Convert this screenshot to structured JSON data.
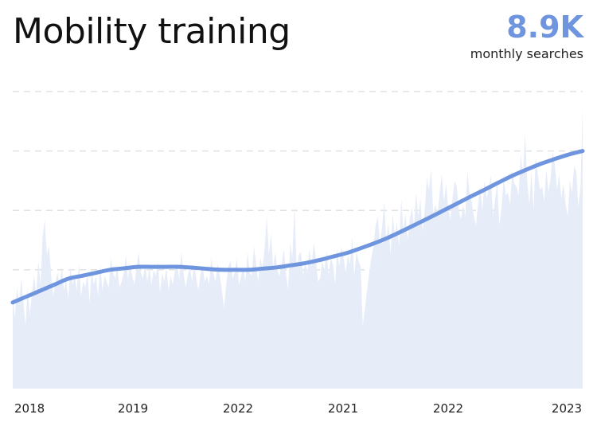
{
  "header": {
    "title": "Mobility training",
    "metric_value": "8.9K",
    "metric_label": "monthly searches"
  },
  "colors": {
    "trend": "#6f95de",
    "area": "#e6ecf8",
    "grid": "#e2e2e2",
    "metric": "#6f95de"
  },
  "chart_data": {
    "type": "area",
    "title": "Mobility training",
    "xlabel": "",
    "ylabel": "",
    "x_tick_labels": [
      "2018",
      "2019",
      "2022",
      "2021",
      "2022",
      "2023"
    ],
    "ylim": [
      0,
      100
    ],
    "grid": "horizontal dashed",
    "series": [
      {
        "kind": "area",
        "values": [
          31,
          24,
          34,
          29,
          37,
          29,
          21,
          34,
          25,
          32,
          38,
          32,
          43,
          35,
          51,
          57,
          45,
          48,
          38,
          31,
          36,
          39,
          35,
          41,
          33,
          37,
          30,
          41,
          35,
          38,
          33,
          42,
          31,
          36,
          34,
          39,
          29,
          40,
          35,
          38,
          31,
          42,
          33,
          38,
          36,
          34,
          44,
          39,
          37,
          41,
          34,
          36,
          39,
          45,
          37,
          42,
          38,
          35,
          41,
          46,
          39,
          37,
          42,
          36,
          41,
          35,
          40,
          38,
          43,
          32,
          39,
          36,
          41,
          33,
          38,
          35,
          40,
          42,
          37,
          46,
          39,
          34,
          38,
          41,
          36,
          42,
          37,
          33,
          39,
          41,
          36,
          38,
          35,
          44,
          39,
          36,
          42,
          38,
          33,
          27,
          35,
          41,
          43,
          37,
          39,
          44,
          35,
          38,
          41,
          36,
          46,
          39,
          38,
          48,
          42,
          36,
          44,
          41,
          47,
          58,
          45,
          52,
          41,
          46,
          40,
          38,
          42,
          47,
          39,
          33,
          49,
          44,
          62,
          40,
          45,
          46,
          38,
          43,
          39,
          47,
          41,
          49,
          44,
          36,
          37,
          43,
          40,
          46,
          38,
          44,
          42,
          35,
          47,
          41,
          48,
          44,
          39,
          45,
          42,
          51,
          38,
          46,
          43,
          41,
          21,
          27,
          33,
          39,
          44,
          48,
          55,
          58,
          49,
          54,
          63,
          50,
          56,
          45,
          59,
          51,
          56,
          48,
          64,
          53,
          59,
          50,
          57,
          61,
          55,
          66,
          58,
          64,
          53,
          60,
          71,
          67,
          74,
          59,
          62,
          58,
          66,
          72,
          63,
          69,
          61,
          57,
          64,
          70,
          68,
          60,
          57,
          62,
          58,
          73,
          66,
          63,
          58,
          55,
          62,
          68,
          60,
          70,
          64,
          67,
          72,
          58,
          64,
          69,
          55,
          61,
          71,
          65,
          66,
          62,
          73,
          69,
          68,
          65,
          79,
          72,
          86,
          70,
          62,
          73,
          60,
          78,
          72,
          67,
          68,
          63,
          74,
          66,
          71,
          80,
          75,
          67,
          72,
          64,
          69,
          62,
          58,
          70,
          66,
          75,
          73,
          61,
          68,
          95
        ]
      },
      {
        "kind": "trend",
        "values": [
          29,
          31,
          33,
          35,
          37,
          38,
          39,
          40,
          40.5,
          41,
          41,
          41,
          41,
          40.7,
          40.3,
          40,
          40,
          40,
          40.4,
          40.8,
          41.5,
          42.2,
          43.2,
          44.4,
          45.6,
          47.2,
          48.9,
          50.8,
          53,
          55.3,
          57.6,
          60,
          62.4,
          64.8,
          67.1,
          69.5,
          71.8,
          73.8,
          75.7,
          77.3,
          78.8,
          80
        ]
      }
    ]
  }
}
